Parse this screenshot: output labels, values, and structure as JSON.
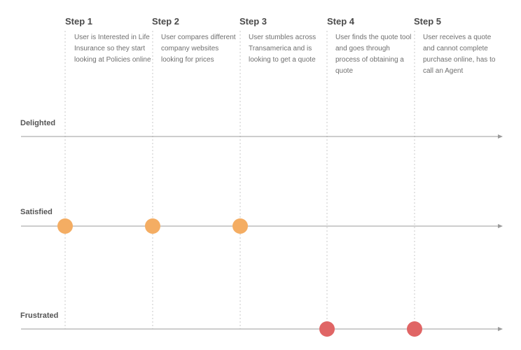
{
  "steps": [
    {
      "title": "Step 1",
      "description": "User is Interested in Life Insurance so they start looking at Policies online",
      "sentiment": "Satisfied"
    },
    {
      "title": "Step 2",
      "description": "User compares different company websites looking for prices",
      "sentiment": "Satisfied"
    },
    {
      "title": "Step 3",
      "description": "User stumbles across Transamerica and is looking to get a quote",
      "sentiment": "Satisfied"
    },
    {
      "title": "Step 4",
      "description": "User finds the quote tool and goes through process of obtaining a quote",
      "sentiment": "Frustrated"
    },
    {
      "title": "Step 5",
      "description": "User receives a quote and cannot complete purchase online, has to call an Agent",
      "sentiment": "Frustrated"
    }
  ],
  "levels": [
    "Delighted",
    "Satisfied",
    "Frustrated"
  ],
  "colors": {
    "satisfied": "#f4ad63",
    "frustrated": "#e06565",
    "axis": "#9b9b9b",
    "guide": "#c8c8c8"
  }
}
